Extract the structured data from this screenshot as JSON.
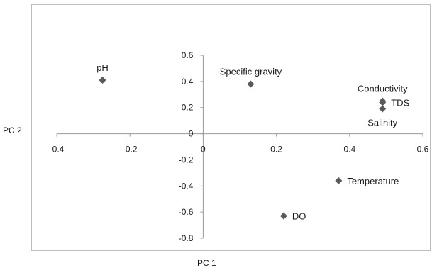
{
  "chart_data": {
    "type": "scatter",
    "title": "",
    "xlabel": "PC 1",
    "ylabel": "PC 2",
    "xlim": [
      -0.4,
      0.6
    ],
    "ylim": [
      -0.8,
      0.6
    ],
    "x_ticks": [
      -0.4,
      -0.2,
      0,
      0.2,
      0.4,
      0.6
    ],
    "y_ticks": [
      0.6,
      0.4,
      0.2,
      0,
      -0.2,
      -0.4,
      -0.6,
      -0.8
    ],
    "x_tick_labels": [
      "-0.4",
      "-0.2",
      "0",
      "0.2",
      "0.4",
      "0.6"
    ],
    "y_tick_labels": [
      "0.6",
      "0.4",
      "0.2",
      "0",
      "-0.2",
      "-0.4",
      "-0.6",
      "-0.8"
    ],
    "grid": false,
    "marker": "diamond",
    "marker_color": "#595959",
    "points": [
      {
        "label": "pH",
        "x": -0.275,
        "y": 0.41,
        "label_pos": "above"
      },
      {
        "label": "Specific gravity",
        "x": 0.13,
        "y": 0.38,
        "label_pos": "above"
      },
      {
        "label": "Conductivity",
        "x": 0.49,
        "y": 0.25,
        "label_pos": "above"
      },
      {
        "label": "TDS",
        "x": 0.49,
        "y": 0.24,
        "label_pos": "right"
      },
      {
        "label": "Salinity",
        "x": 0.49,
        "y": 0.19,
        "label_pos": "below"
      },
      {
        "label": "Temperature",
        "x": 0.37,
        "y": -0.36,
        "label_pos": "right"
      },
      {
        "label": "DO",
        "x": 0.22,
        "y": -0.63,
        "label_pos": "right"
      }
    ]
  }
}
